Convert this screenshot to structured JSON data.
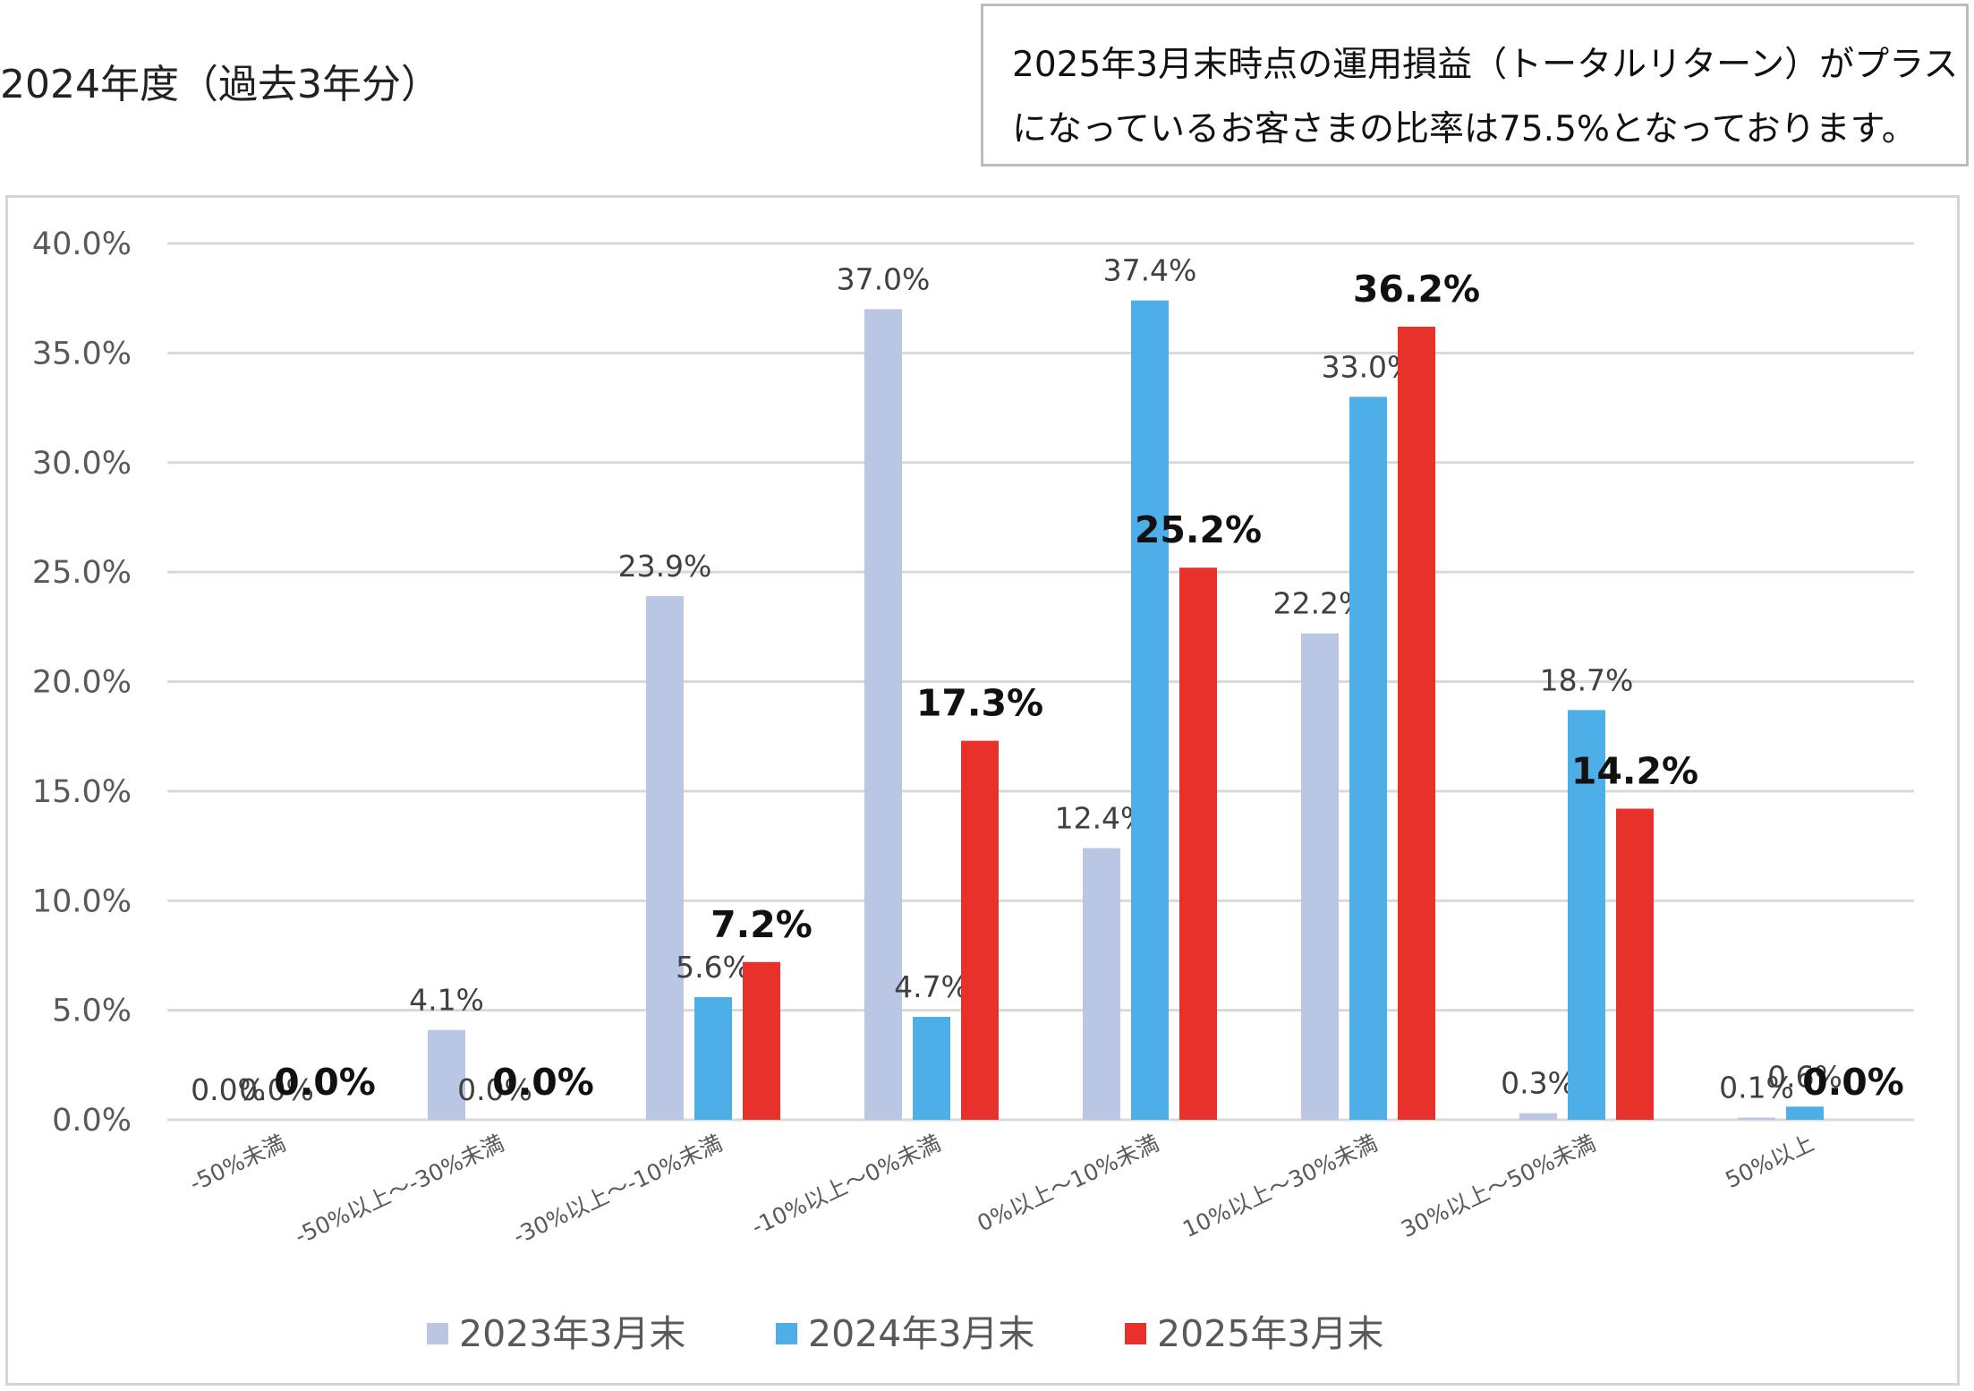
{
  "header": {
    "title": "2024年度（過去3年分）",
    "note_line1": "2025年3月末時点の運用損益（トータルリターン）がプラス",
    "note_line2": "になっているお客さまの比率は75.5%となっております。"
  },
  "chart_data": {
    "type": "bar",
    "title": "",
    "xlabel": "",
    "ylabel": "",
    "ylim": [
      0,
      40
    ],
    "yticks": [
      "0.0%",
      "5.0%",
      "10.0%",
      "15.0%",
      "20.0%",
      "25.0%",
      "30.0%",
      "35.0%",
      "40.0%"
    ],
    "grid": true,
    "legend_position": "bottom",
    "categories": [
      "-50%未満",
      "-50%以上～-30%未満",
      "-30%以上～-10%未満",
      "-10%以上～0%未満",
      "0%以上～10%未満",
      "10%以上～30%未満",
      "30%以上～50%未満",
      "50%以上"
    ],
    "series": [
      {
        "name": "2023年3月末",
        "color": "#b9c7e4",
        "values": [
          0.0,
          4.1,
          23.9,
          37.0,
          12.4,
          22.2,
          0.3,
          0.1
        ],
        "labels": [
          "0.0%",
          "4.1%",
          "23.9%",
          "37.0%",
          "12.4%",
          "22.2%",
          "0.3%",
          "0.1%"
        ]
      },
      {
        "name": "2024年3月末",
        "color": "#4daee8",
        "values": [
          0.0,
          0.0,
          5.6,
          4.7,
          37.4,
          33.0,
          18.7,
          0.6
        ],
        "labels": [
          "0.0%",
          "0.0%",
          "5.6%",
          "4.7%",
          "37.4%",
          "33.0%",
          "18.7%",
          "0.6%"
        ]
      },
      {
        "name": "2025年3月末",
        "color": "#e8312a",
        "values": [
          0.0,
          0.0,
          7.2,
          17.3,
          25.2,
          36.2,
          14.2,
          0.0
        ],
        "labels": [
          "0.0%",
          "0.0%",
          "7.2%",
          "17.3%",
          "25.2%",
          "36.2%",
          "14.2%",
          "0.0%"
        ]
      }
    ]
  }
}
